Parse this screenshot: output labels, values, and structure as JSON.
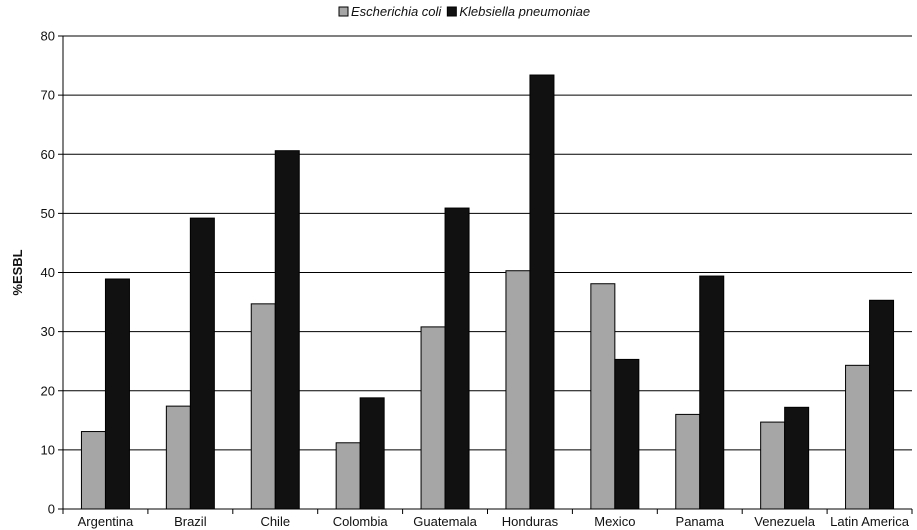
{
  "chart_data": {
    "type": "bar",
    "title": "",
    "xlabel": "",
    "ylabel": "%ESBL",
    "ylim": [
      0,
      80
    ],
    "yticks": [
      0,
      10,
      20,
      30,
      40,
      50,
      60,
      70,
      80
    ],
    "grid": true,
    "legend_position": "top-center",
    "categories": [
      "Argentina",
      "Brazil",
      "Chile",
      "Colombia",
      "Guatemala",
      "Honduras",
      "Mexico",
      "Panama",
      "Venezuela",
      "Latin America"
    ],
    "series": [
      {
        "name": "Escherichia coli",
        "color": "#a6a6a6",
        "values": [
          13.1,
          17.4,
          34.7,
          11.2,
          30.8,
          40.3,
          38.1,
          16.0,
          14.7,
          24.3
        ]
      },
      {
        "name": "Klebsiella pneumoniae",
        "color": "#111111",
        "values": [
          38.9,
          49.2,
          60.6,
          18.8,
          50.9,
          73.4,
          25.3,
          39.4,
          17.2,
          35.3
        ]
      }
    ]
  }
}
